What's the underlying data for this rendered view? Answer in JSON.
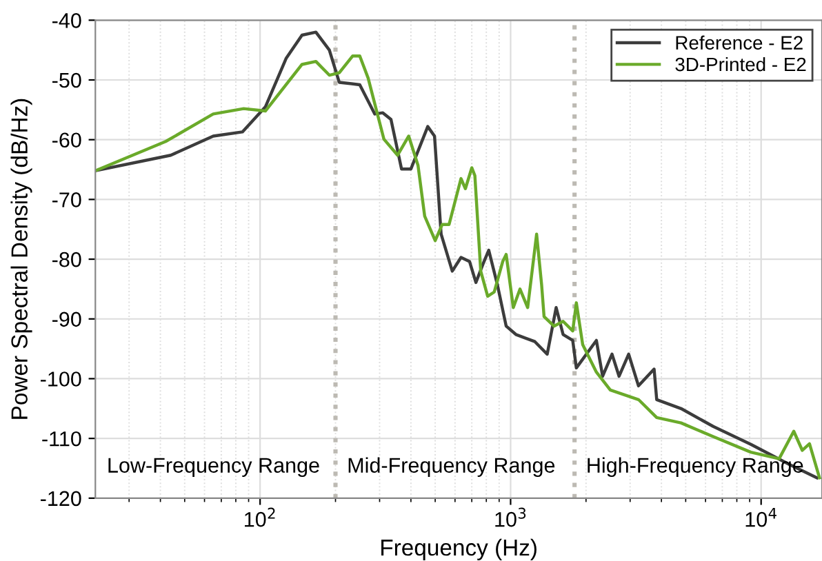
{
  "chart_data": {
    "type": "line",
    "xlabel": "Frequency (Hz)",
    "ylabel": "Power Spectral Density (dB/Hz)",
    "log": "x",
    "xlim": [
      22,
      17500
    ],
    "ylim": [
      -120,
      -40
    ],
    "xticks": [
      {
        "value": 100,
        "label": "10$^{2}$"
      },
      {
        "value": 1000,
        "label": "10$^{3}$"
      },
      {
        "value": 10000,
        "label": "10$^{4}$"
      }
    ],
    "yticks": [
      -120,
      -110,
      -100,
      -90,
      -80,
      -70,
      -60,
      -50,
      -40
    ],
    "grid": true,
    "legend": "top right",
    "line_style": "solid",
    "marker": "none",
    "series": [
      {
        "name": "Reference - E2",
        "color": "#3c3c3c",
        "x": [
          22,
          44,
          65,
          85,
          105,
          127,
          147,
          167,
          189,
          207,
          250,
          287,
          309,
          333,
          367,
          400,
          467,
          497,
          528,
          585,
          634,
          686,
          727,
          783,
          818,
          886,
          960,
          1050,
          1250,
          1400,
          1520,
          1620,
          1770,
          1830,
          2200,
          2330,
          2540,
          2710,
          2960,
          3240,
          3740,
          3830,
          4790,
          6440,
          9100,
          12900,
          16700
        ],
        "values": [
          -65.2,
          -62.6,
          -59.4,
          -58.7,
          -54.5,
          -46.4,
          -42.5,
          -42.0,
          -45.0,
          -50.4,
          -50.8,
          -55.7,
          -55.5,
          -56.6,
          -64.9,
          -64.9,
          -57.8,
          -59.4,
          -75.8,
          -82.0,
          -79.7,
          -80.4,
          -83.9,
          -80.4,
          -78.5,
          -84.3,
          -91.2,
          -92.6,
          -93.8,
          -95.9,
          -88.1,
          -92.6,
          -93.6,
          -98.2,
          -93.6,
          -99.6,
          -95.9,
          -99.6,
          -95.9,
          -101.2,
          -98.4,
          -103.5,
          -105.0,
          -108.0,
          -111.0,
          -114.3,
          -116.6
        ]
      },
      {
        "name": "3D-Printed - E2",
        "color": "#6aaa2a",
        "x": [
          22,
          42,
          65,
          86,
          105,
          147,
          167,
          189,
          207,
          234,
          250,
          270,
          312,
          354,
          392,
          427,
          454,
          500,
          533,
          568,
          634,
          660,
          700,
          720,
          760,
          810,
          860,
          930,
          960,
          1025,
          1090,
          1170,
          1270,
          1330,
          1360,
          1490,
          1620,
          1770,
          1830,
          1940,
          2200,
          2500,
          3240,
          3830,
          4790,
          6440,
          9100,
          11800,
          13500,
          14600,
          15600,
          17100
        ],
        "values": [
          -65.2,
          -60.3,
          -55.7,
          -54.8,
          -55.2,
          -47.4,
          -46.9,
          -49.2,
          -48.8,
          -46.0,
          -46.0,
          -49.7,
          -59.9,
          -62.6,
          -59.4,
          -64.3,
          -72.8,
          -76.9,
          -74.2,
          -74.2,
          -66.5,
          -68.2,
          -64.7,
          -66.0,
          -82.0,
          -86.2,
          -85.5,
          -80.4,
          -79.2,
          -88.1,
          -85.0,
          -88.1,
          -75.8,
          -84.3,
          -89.6,
          -91.2,
          -90.4,
          -92.0,
          -87.3,
          -94.3,
          -98.9,
          -101.9,
          -103.5,
          -106.5,
          -107.4,
          -109.7,
          -112.3,
          -113.4,
          -108.8,
          -112.0,
          -110.9,
          -116.6
        ]
      }
    ],
    "ref_lines": [
      {
        "axis": "x",
        "value": 200,
        "color": "#bdbab3",
        "line_style": "dotted"
      },
      {
        "axis": "x",
        "value": 1800,
        "color": "#bdbab3",
        "line_style": "dotted"
      }
    ],
    "annotations": [
      "Low-Frequency Range",
      "Mid-Frequency Range",
      "High-Frequency Range"
    ]
  }
}
